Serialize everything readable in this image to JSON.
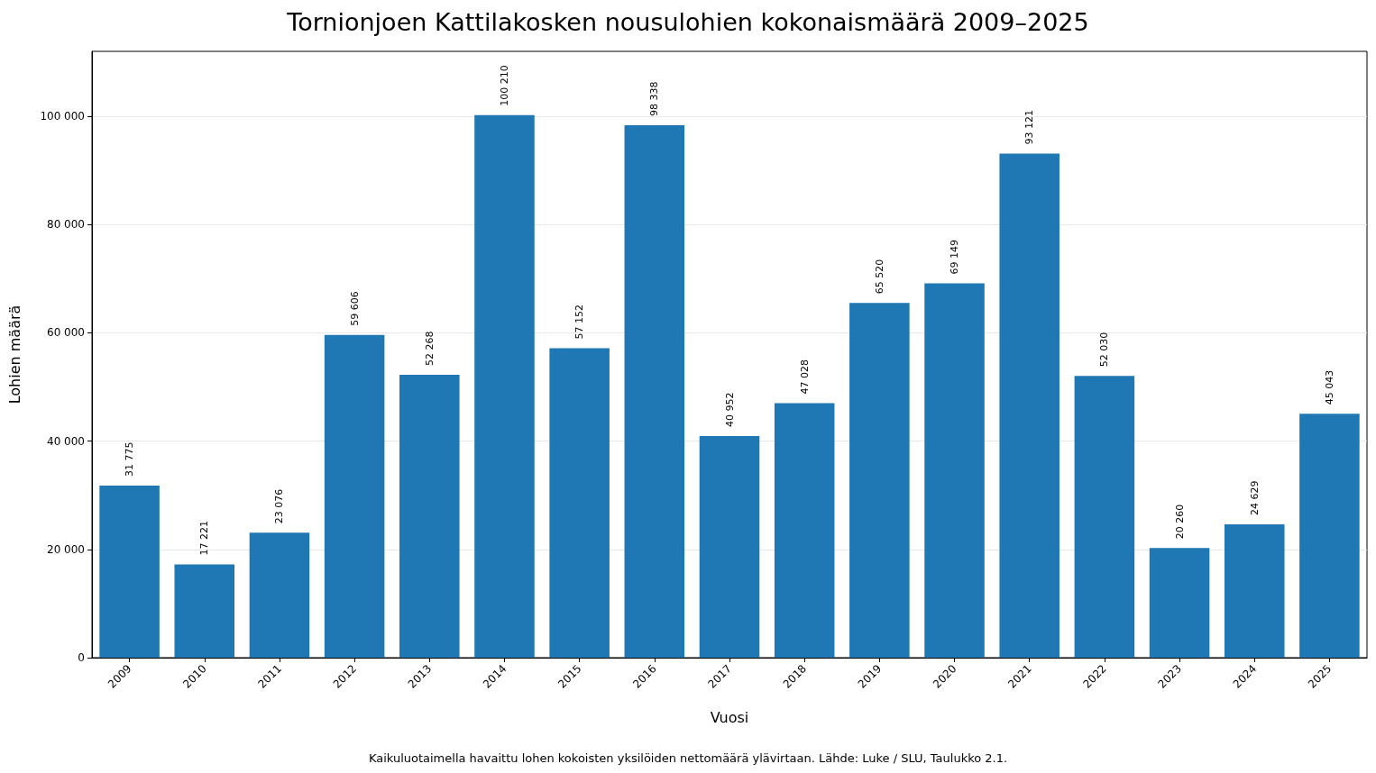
{
  "chart_data": {
    "type": "bar",
    "title": "Tornionjoen Kattilakosken nousulohien kokonaismäärä 2009–2025",
    "xlabel": "Vuosi",
    "ylabel": "Lohien määrä",
    "annotations": [
      "Kaikuluotaimella havaittu lohen kokoisten yksilöiden nettomäärä ylävirtaan. Lähde: Luke / SLU, Taulukko 2.1."
    ],
    "categories": [
      "2009",
      "2010",
      "2011",
      "2012",
      "2013",
      "2014",
      "2015",
      "2016",
      "2017",
      "2018",
      "2019",
      "2020",
      "2021",
      "2022",
      "2023",
      "2024",
      "2025"
    ],
    "values": [
      31775,
      17221,
      23076,
      59606,
      52268,
      100210,
      57152,
      98338,
      40952,
      47028,
      65520,
      69149,
      93121,
      52030,
      20260,
      24629,
      45043
    ],
    "value_labels": [
      "31 775",
      "17 221",
      "23 076",
      "59 606",
      "52 268",
      "100 210",
      "57 152",
      "98 338",
      "40 952",
      "47 028",
      "65 520",
      "69 149",
      "93 121",
      "52 030",
      "20 260",
      "24 629",
      "45 043"
    ],
    "color": "#1f77b4",
    "ylim": [
      0,
      112000
    ],
    "yticks": [
      0,
      {
        "value": 20000,
        "label": "20 000"
      },
      {
        "value": 40000,
        "label": "40 000"
      },
      {
        "value": 60000,
        "label": "60 000"
      },
      {
        "value": 80000,
        "label": "80 000"
      },
      {
        "value": 100000,
        "label": "100 000"
      }
    ],
    "grid": "y"
  }
}
